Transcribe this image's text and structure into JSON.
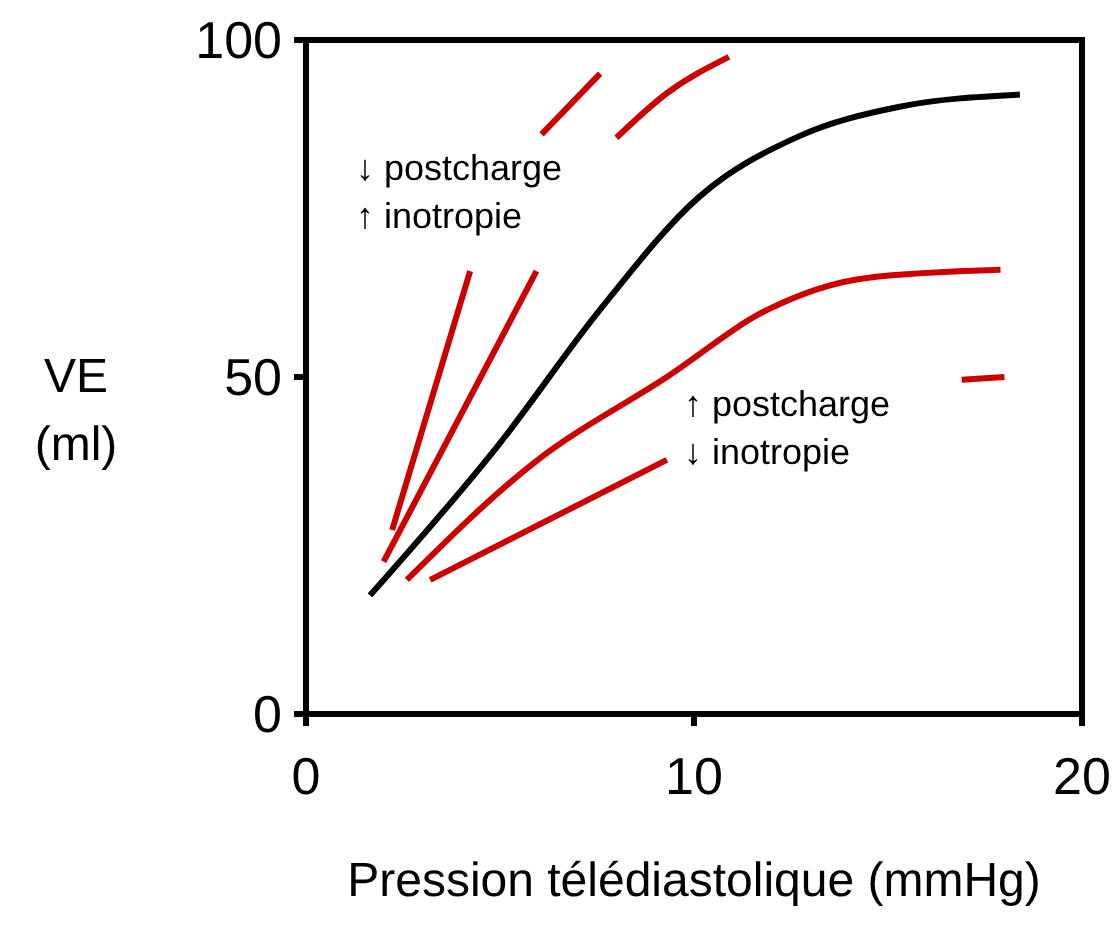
{
  "chart_data": {
    "type": "line",
    "xlabel": "Pression télédiastolique (mmHg)",
    "ylabel": "VE (ml)",
    "xlim": [
      0,
      20
    ],
    "ylim": [
      0,
      100
    ],
    "xticks": [
      0,
      10,
      20
    ],
    "yticks": [
      0,
      50,
      100
    ],
    "line_style": "solid",
    "series": [
      {
        "color": "#000000",
        "x": [
          1.65,
          5.0,
          7.58,
          10.15,
          12.7,
          15.3,
          18.4
        ],
        "values": [
          17.6,
          40.2,
          60,
          76.8,
          85.7,
          90.1,
          91.9
        ]
      },
      {
        "color": "#cc0000",
        "x": [
          2.22,
          4.23,
          5.1,
          6.07,
          7.58
        ],
        "values": [
          27.3,
          65.7,
          null,
          86,
          95
        ]
      },
      {
        "color": "#cc0000",
        "x": [
          2.0,
          5.94,
          7.0,
          8.0,
          9.3,
          10.9
        ],
        "values": [
          22.6,
          65.7,
          null,
          85.5,
          92.1,
          97.5
        ]
      },
      {
        "color": "#cc0000",
        "x": [
          2.6,
          5.86,
          9.3,
          11.9,
          14.45,
          17.9
        ],
        "values": [
          19.9,
          37.2,
          50,
          60,
          64.7,
          65.9
        ]
      },
      {
        "color": "#cc0000",
        "x": [
          3.2,
          9.3,
          13,
          16.9,
          18.0
        ],
        "values": [
          19.9,
          37.7,
          null,
          49.6,
          50
        ]
      }
    ],
    "annotations": [
      "↓ postcharge\n↑ inotropie",
      "↑ postcharge\n↓ inotropie"
    ]
  }
}
